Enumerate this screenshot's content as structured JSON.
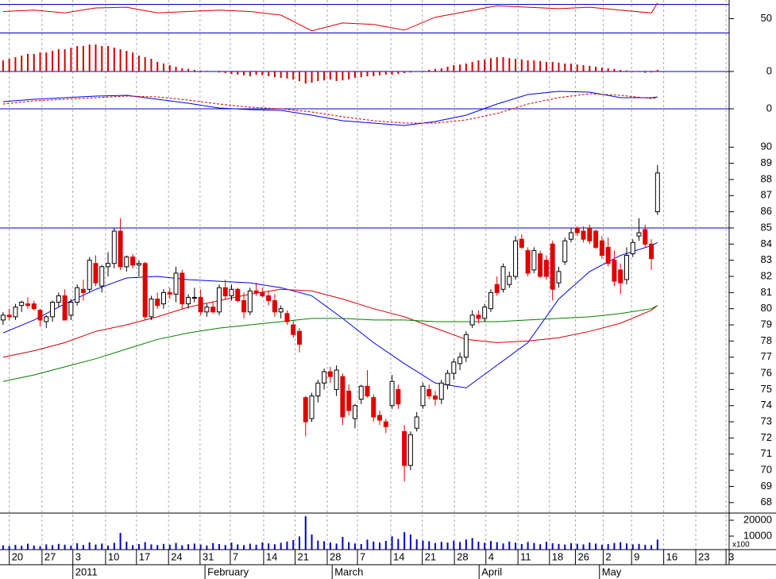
{
  "chart_data": {
    "type": "candlestick",
    "xlim": [
      -0.5,
      117.6
    ],
    "xticks": [
      {
        "value": 1.0,
        "label": "20"
      },
      {
        "value": 6.3,
        "label": "27"
      },
      {
        "value": 11.3,
        "label": "3"
      },
      {
        "value": 16.6,
        "label": "10"
      },
      {
        "value": 21.6,
        "label": "17"
      },
      {
        "value": 26.8,
        "label": "24"
      },
      {
        "value": 31.9,
        "label": "31"
      },
      {
        "value": 36.8,
        "label": "7"
      },
      {
        "value": 42.2,
        "label": "14"
      },
      {
        "value": 47.3,
        "label": "21"
      },
      {
        "value": 52.5,
        "label": "28"
      },
      {
        "value": 57.4,
        "label": "7"
      },
      {
        "value": 62.8,
        "label": "14"
      },
      {
        "value": 67.9,
        "label": "21"
      },
      {
        "value": 73.1,
        "label": "28"
      },
      {
        "value": 78.2,
        "label": "4"
      },
      {
        "value": 83.4,
        "label": "11"
      },
      {
        "value": 88.5,
        "label": "18"
      },
      {
        "value": 92.7,
        "label": "26"
      },
      {
        "value": 97.2,
        "label": "2"
      },
      {
        "value": 101.8,
        "label": "9"
      },
      {
        "value": 107.0,
        "label": "16"
      },
      {
        "value": 112.2,
        "label": "23"
      },
      {
        "value": 117.1,
        "label": "3"
      }
    ],
    "months": [
      {
        "value": 11.3,
        "label": "2011"
      },
      {
        "value": 32.7,
        "label": "February"
      },
      {
        "value": 53.3,
        "label": "March"
      },
      {
        "value": 77.1,
        "label": "April"
      },
      {
        "value": 96.6,
        "label": "May"
      }
    ],
    "ylim": [
      67.4,
      90.75
    ],
    "yticks": [
      68,
      69,
      70,
      71,
      72,
      73,
      74,
      75,
      76,
      77,
      78,
      79,
      80,
      81,
      82,
      83,
      84,
      85,
      86,
      87,
      88,
      89,
      90
    ],
    "hlines": [
      85
    ],
    "up_color": "#ffffff",
    "down_color": "#e00000",
    "candles": [
      [
        79.3,
        79.8,
        79.0,
        79.6
      ],
      [
        79.6,
        80.0,
        79.3,
        79.5
      ],
      [
        79.5,
        80.3,
        79.3,
        80.1
      ],
      [
        80.2,
        80.5,
        79.8,
        80.4
      ],
      [
        80.3,
        80.7,
        80.0,
        80.2
      ],
      [
        80.3,
        80.5,
        79.9,
        80.0
      ],
      [
        79.9,
        80.0,
        78.9,
        79.3
      ],
      [
        79.2,
        79.6,
        78.8,
        79.5
      ],
      [
        79.5,
        80.5,
        79.2,
        80.4
      ],
      [
        80.4,
        81.0,
        80.1,
        80.8
      ],
      [
        80.8,
        81.2,
        79.3,
        79.3
      ],
      [
        79.6,
        80.6,
        79.3,
        80.4
      ],
      [
        80.4,
        81.5,
        80.2,
        81.3
      ],
      [
        81.2,
        81.8,
        80.5,
        81.0
      ],
      [
        81.2,
        83.2,
        81.0,
        83.0
      ],
      [
        82.8,
        83.3,
        81.4,
        81.6
      ],
      [
        81.4,
        82.7,
        81.0,
        82.6
      ],
      [
        82.6,
        83.5,
        82.0,
        82.8
      ],
      [
        82.8,
        85.0,
        82.5,
        84.8
      ],
      [
        84.8,
        85.6,
        82.4,
        82.6
      ],
      [
        82.6,
        83.3,
        82.3,
        83.2
      ],
      [
        83.2,
        83.4,
        82.5,
        82.7
      ],
      [
        82.7,
        83.0,
        82.0,
        82.8
      ],
      [
        82.8,
        82.9,
        79.3,
        79.5
      ],
      [
        79.5,
        80.8,
        79.3,
        80.6
      ],
      [
        80.6,
        81.0,
        80.0,
        80.2
      ],
      [
        80.3,
        81.2,
        80.0,
        81.0
      ],
      [
        81.0,
        81.3,
        80.6,
        80.9
      ],
      [
        80.9,
        82.6,
        80.4,
        82.2
      ],
      [
        82.2,
        82.4,
        80.0,
        80.3
      ],
      [
        80.3,
        80.9,
        80.0,
        80.7
      ],
      [
        80.7,
        81.3,
        80.4,
        80.7
      ],
      [
        80.7,
        81.2,
        79.6,
        79.8
      ],
      [
        79.8,
        80.3,
        79.5,
        80.1
      ],
      [
        80.1,
        80.4,
        79.7,
        79.8
      ],
      [
        79.8,
        81.5,
        79.6,
        81.3
      ],
      [
        81.3,
        81.8,
        80.6,
        80.8
      ],
      [
        80.8,
        81.5,
        80.5,
        81.2
      ],
      [
        81.2,
        81.3,
        80.4,
        80.5
      ],
      [
        80.5,
        81.0,
        79.4,
        79.8
      ],
      [
        79.8,
        81.3,
        79.6,
        81.1
      ],
      [
        81.1,
        81.6,
        80.8,
        81.0
      ],
      [
        81.0,
        81.3,
        80.7,
        80.8
      ],
      [
        80.8,
        81.1,
        80.2,
        80.5
      ],
      [
        80.5,
        80.9,
        79.5,
        79.8
      ],
      [
        79.8,
        80.2,
        79.4,
        80.0
      ],
      [
        79.7,
        79.9,
        79.0,
        79.2
      ],
      [
        79.0,
        79.3,
        78.2,
        78.4
      ],
      [
        78.6,
        78.8,
        77.3,
        77.8
      ],
      [
        74.5,
        74.6,
        72.1,
        73.0
      ],
      [
        73.2,
        74.8,
        73.0,
        74.6
      ],
      [
        74.6,
        75.6,
        74.2,
        75.4
      ],
      [
        75.4,
        76.3,
        75.0,
        76.1
      ],
      [
        76.1,
        76.4,
        75.4,
        75.8
      ],
      [
        75.0,
        76.5,
        74.6,
        76.2
      ],
      [
        75.8,
        76.0,
        72.8,
        73.3
      ],
      [
        74.9,
        75.3,
        73.4,
        73.7
      ],
      [
        73.2,
        74.1,
        72.6,
        74.0
      ],
      [
        74.4,
        75.3,
        74.1,
        75.2
      ],
      [
        75.2,
        76.2,
        74.5,
        74.6
      ],
      [
        74.5,
        74.7,
        73.0,
        73.3
      ],
      [
        73.4,
        73.7,
        72.8,
        73.1
      ],
      [
        73.0,
        73.2,
        72.3,
        72.7
      ],
      [
        74.0,
        75.9,
        73.8,
        75.5
      ],
      [
        75.0,
        75.3,
        73.8,
        74.1
      ],
      [
        72.4,
        72.8,
        69.3,
        70.3
      ],
      [
        70.3,
        72.4,
        70.0,
        72.2
      ],
      [
        72.6,
        73.6,
        72.4,
        73.3
      ],
      [
        74.0,
        75.4,
        73.8,
        75.2
      ],
      [
        75.0,
        75.3,
        74.4,
        74.6
      ],
      [
        74.6,
        74.9,
        74.0,
        74.4
      ],
      [
        74.4,
        75.6,
        74.1,
        75.4
      ],
      [
        75.3,
        76.2,
        75.0,
        76.0
      ],
      [
        76.0,
        76.9,
        75.6,
        76.7
      ],
      [
        76.6,
        77.3,
        76.2,
        77.0
      ],
      [
        77.0,
        78.6,
        76.7,
        78.4
      ],
      [
        79.0,
        79.9,
        78.8,
        79.6
      ],
      [
        79.6,
        79.9,
        79.1,
        79.4
      ],
      [
        79.4,
        80.3,
        79.2,
        80.1
      ],
      [
        80.0,
        81.2,
        79.8,
        81.0
      ],
      [
        81.5,
        82.0,
        80.8,
        81.0
      ],
      [
        81.2,
        82.8,
        81.0,
        82.6
      ],
      [
        81.5,
        82.3,
        81.3,
        82.0
      ],
      [
        82.0,
        84.5,
        81.8,
        84.2
      ],
      [
        84.3,
        84.6,
        83.7,
        83.8
      ],
      [
        83.6,
        83.8,
        82.0,
        82.2
      ],
      [
        82.4,
        83.8,
        82.2,
        83.6
      ],
      [
        83.4,
        83.6,
        81.9,
        82.0
      ],
      [
        83.0,
        83.3,
        81.8,
        82.0
      ],
      [
        84.0,
        84.2,
        80.5,
        81.2
      ],
      [
        81.6,
        82.6,
        81.3,
        82.3
      ],
      [
        82.9,
        84.4,
        82.7,
        84.2
      ],
      [
        84.3,
        85.0,
        84.1,
        84.7
      ],
      [
        85.0,
        85.1,
        84.5,
        84.7
      ],
      [
        84.8,
        85.1,
        84.1,
        84.3
      ],
      [
        85.0,
        85.2,
        84.0,
        84.2
      ],
      [
        84.8,
        84.9,
        83.7,
        83.8
      ],
      [
        84.2,
        84.5,
        83.1,
        83.3
      ],
      [
        83.8,
        84.4,
        82.6,
        82.8
      ],
      [
        83.0,
        83.6,
        81.4,
        81.7
      ],
      [
        82.4,
        82.8,
        80.9,
        81.6
      ],
      [
        81.8,
        83.8,
        81.5,
        83.3
      ],
      [
        83.4,
        84.3,
        83.2,
        84.1
      ],
      [
        84.5,
        85.6,
        84.2,
        84.7
      ],
      [
        84.9,
        85.2,
        83.8,
        84.0
      ],
      [
        84.0,
        84.3,
        82.4,
        83.1
      ],
      [
        86.0,
        88.9,
        85.8,
        88.4
      ]
    ],
    "line_x": [
      0,
      5,
      10,
      15,
      20,
      25,
      30,
      35,
      40,
      45,
      50,
      55,
      60,
      65,
      70,
      75,
      80,
      85,
      90,
      95,
      100,
      105,
      106
    ],
    "lines": [
      {
        "color": "#0000ee",
        "values": [
          78.5,
          79.3,
          80.3,
          81.2,
          81.9,
          82.0,
          81.8,
          81.7,
          81.6,
          81.3,
          80.8,
          79.4,
          77.9,
          76.6,
          75.4,
          75.1,
          76.5,
          77.9,
          80.6,
          82.3,
          83.3,
          83.9,
          84.1
        ]
      },
      {
        "color": "#d00000",
        "values": [
          77.0,
          77.4,
          77.9,
          78.6,
          79.0,
          79.5,
          80.1,
          80.5,
          80.9,
          81.2,
          81.1,
          80.6,
          80.0,
          79.5,
          78.8,
          78.1,
          77.9,
          78.0,
          78.2,
          78.6,
          79.1,
          79.9,
          80.2
        ]
      },
      {
        "color": "#008000",
        "values": [
          75.5,
          75.9,
          76.4,
          76.9,
          77.5,
          78.1,
          78.5,
          78.8,
          79.0,
          79.2,
          79.4,
          79.4,
          79.3,
          79.3,
          79.2,
          79.2,
          79.2,
          79.3,
          79.4,
          79.5,
          79.7,
          80.0,
          80.2
        ]
      }
    ],
    "rsi": {
      "ylim": [
        25,
        75
      ],
      "yticks": [
        50
      ],
      "hlines": [
        30,
        70
      ],
      "color": "#d00000",
      "values": [
        60,
        62,
        58,
        65,
        66,
        58,
        60,
        62,
        60,
        55,
        33,
        44,
        42,
        34,
        52,
        60,
        68,
        66,
        64,
        66,
        62,
        58,
        72
      ]
    },
    "histogram": {
      "ylim": [
        -0.5,
        1.1
      ],
      "yticks": [
        0
      ],
      "color": "#d00000",
      "values": [
        0.35,
        0.4,
        0.45,
        0.5,
        0.55,
        0.55,
        0.6,
        0.6,
        0.65,
        0.7,
        0.7,
        0.75,
        0.8,
        0.8,
        0.85,
        0.85,
        0.8,
        0.8,
        0.75,
        0.7,
        0.65,
        0.6,
        0.5,
        0.45,
        0.4,
        0.3,
        0.25,
        0.2,
        0.15,
        0.1,
        0.08,
        0.05,
        0.03,
        0.02,
        0,
        -0.03,
        -0.05,
        -0.08,
        -0.1,
        -0.12,
        -0.15,
        -0.1,
        -0.12,
        -0.15,
        -0.18,
        -0.2,
        -0.22,
        -0.25,
        -0.3,
        -0.38,
        -0.35,
        -0.3,
        -0.28,
        -0.25,
        -0.3,
        -0.28,
        -0.25,
        -0.2,
        -0.18,
        -0.15,
        -0.15,
        -0.12,
        -0.1,
        -0.1,
        -0.08,
        -0.05,
        -0.03,
        0,
        0.02,
        0.05,
        0.08,
        0.1,
        0.15,
        0.2,
        0.22,
        0.25,
        0.3,
        0.35,
        0.38,
        0.42,
        0.45,
        0.45,
        0.42,
        0.4,
        0.38,
        0.35,
        0.35,
        0.33,
        0.3,
        0.3,
        0.28,
        0.25,
        0.25,
        0.22,
        0.2,
        0.18,
        0.15,
        0.12,
        0.1,
        0.08,
        0.05,
        0.03,
        0.02,
        -0.02,
        -0.04,
        -0.03,
        0.05
      ]
    },
    "macd": {
      "ylim": [
        -1.4,
        2.1
      ],
      "yticks": [
        0
      ],
      "series": [
        {
          "color": "#0000ee",
          "values": [
            0.45,
            0.6,
            0.7,
            0.8,
            0.85,
            0.6,
            0.35,
            0.05,
            -0.05,
            -0.1,
            -0.4,
            -0.75,
            -0.9,
            -1.05,
            -0.8,
            -0.4,
            0.3,
            0.9,
            1.1,
            1.05,
            0.7,
            0.7,
            0.75
          ]
        },
        {
          "color": "#d00000",
          "values": [
            0.3,
            0.5,
            0.6,
            0.7,
            0.8,
            0.75,
            0.55,
            0.3,
            0.1,
            0.0,
            -0.2,
            -0.5,
            -0.75,
            -0.9,
            -0.9,
            -0.7,
            -0.3,
            0.3,
            0.7,
            0.95,
            0.85,
            0.65,
            0.7
          ]
        }
      ]
    },
    "volume": {
      "ylim": [
        1500,
        24000
      ],
      "yticks": [
        20000,
        10000
      ],
      "unit": "x100",
      "color": "#0000cc",
      "values": [
        4200,
        3800,
        4500,
        3900,
        5200,
        4100,
        3700,
        4800,
        4300,
        5100,
        4600,
        4000,
        5500,
        4400,
        6000,
        4700,
        5300,
        4100,
        5800,
        12000,
        6500,
        4300,
        5000,
        6200,
        4800,
        4400,
        5100,
        4600,
        5700,
        4200,
        4900,
        5300,
        4700,
        4100,
        5600,
        5000,
        4400,
        5900,
        4800,
        4300,
        5200,
        4600,
        6100,
        5400,
        4900,
        5800,
        6600,
        7500,
        9800,
        22500,
        11000,
        7200,
        6800,
        6000,
        5300,
        9500,
        6200,
        5400,
        5000,
        7800,
        6600,
        5900,
        7000,
        9900,
        8200,
        12500,
        11000,
        8000,
        7200,
        6800,
        5600,
        6400,
        5900,
        7100,
        6300,
        7900,
        8800,
        6500,
        5800,
        6900,
        6200,
        5400,
        6600,
        5800,
        5000,
        6300,
        5700,
        4900,
        6400,
        5500,
        5100,
        4700,
        5600,
        5200,
        4800,
        5900,
        5300,
        4600,
        5000,
        5700,
        6200,
        5400,
        4800,
        5100,
        4500,
        4300,
        7800
      ]
    }
  }
}
